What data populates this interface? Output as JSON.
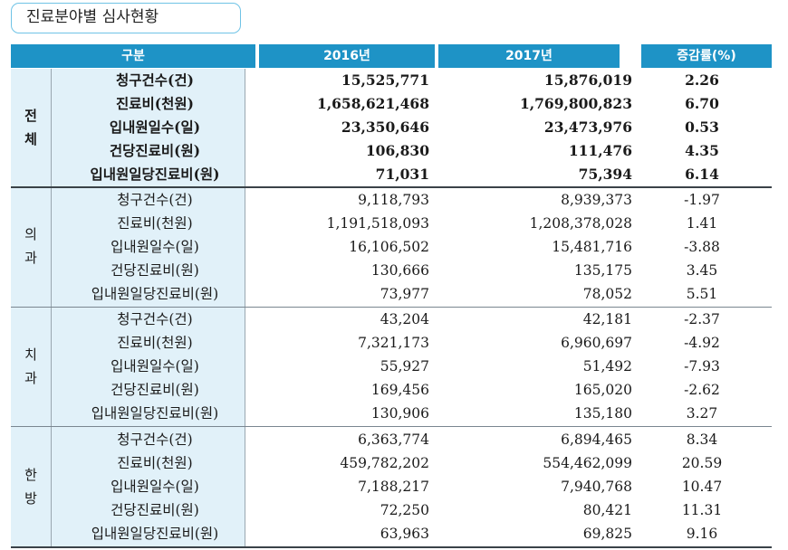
{
  "title": "진료분야별 심사현황",
  "header": {
    "category": "구분",
    "y2016": "2016년",
    "y2017": "2017년",
    "rate": "증감률(%)"
  },
  "sections": [
    {
      "label_line1": "전",
      "label_line2": "체",
      "rows": [
        {
          "item": "청구건수(건)",
          "y2016": "15,525,771",
          "y2017": "15,876,019",
          "rate": "2.26"
        },
        {
          "item": "진료비(천원)",
          "y2016": "1,658,621,468",
          "y2017": "1,769,800,823",
          "rate": "6.70"
        },
        {
          "item": "입내원일수(일)",
          "y2016": "23,350,646",
          "y2017": "23,473,976",
          "rate": "0.53"
        },
        {
          "item": "건당진료비(원)",
          "y2016": "106,830",
          "y2017": "111,476",
          "rate": "4.35"
        },
        {
          "item": "입내원일당진료비(원)",
          "y2016": "71,031",
          "y2017": "75,394",
          "rate": "6.14"
        }
      ]
    },
    {
      "label_line1": "의",
      "label_line2": "과",
      "rows": [
        {
          "item": "청구건수(건)",
          "y2016": "9,118,793",
          "y2017": "8,939,373",
          "rate": "-1.97"
        },
        {
          "item": "진료비(천원)",
          "y2016": "1,191,518,093",
          "y2017": "1,208,378,028",
          "rate": "1.41"
        },
        {
          "item": "입내원일수(일)",
          "y2016": "16,106,502",
          "y2017": "15,481,716",
          "rate": "-3.88"
        },
        {
          "item": "건당진료비(원)",
          "y2016": "130,666",
          "y2017": "135,175",
          "rate": "3.45"
        },
        {
          "item": "입내원일당진료비(원)",
          "y2016": "73,977",
          "y2017": "78,052",
          "rate": "5.51"
        }
      ]
    },
    {
      "label_line1": "치",
      "label_line2": "과",
      "rows": [
        {
          "item": "청구건수(건)",
          "y2016": "43,204",
          "y2017": "42,181",
          "rate": "-2.37"
        },
        {
          "item": "진료비(천원)",
          "y2016": "7,321,173",
          "y2017": "6,960,697",
          "rate": "-4.92"
        },
        {
          "item": "입내원일수(일)",
          "y2016": "55,927",
          "y2017": "51,492",
          "rate": "-7.93"
        },
        {
          "item": "건당진료비(원)",
          "y2016": "169,456",
          "y2017": "165,020",
          "rate": "-2.62"
        },
        {
          "item": "입내원일당진료비(원)",
          "y2016": "130,906",
          "y2017": "135,180",
          "rate": "3.27"
        }
      ]
    },
    {
      "label_line1": "한",
      "label_line2": "방",
      "rows": [
        {
          "item": "청구건수(건)",
          "y2016": "6,363,774",
          "y2017": "6,894,465",
          "rate": "8.34"
        },
        {
          "item": "진료비(천원)",
          "y2016": "459,782,202",
          "y2017": "554,462,099",
          "rate": "20.59"
        },
        {
          "item": "입내원일수(일)",
          "y2016": "7,188,217",
          "y2017": "7,940,768",
          "rate": "10.47"
        },
        {
          "item": "건당진료비(원)",
          "y2016": "72,250",
          "y2017": "80,421",
          "rate": "11.31"
        },
        {
          "item": "입내원일당진료비(원)",
          "y2016": "63,963",
          "y2017": "69,825",
          "rate": "9.16"
        }
      ]
    }
  ],
  "colors": {
    "header_bg": "#1e93c6",
    "side_bg": "#e1f1f9",
    "title_border": "#6fc3e6"
  }
}
